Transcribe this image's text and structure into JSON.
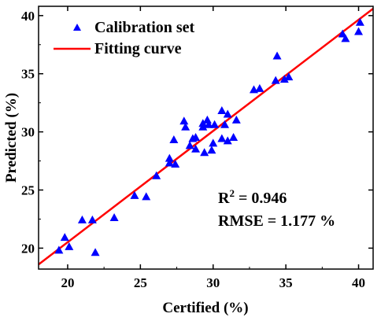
{
  "chart_data": {
    "type": "scatter",
    "xlabel": "Certified (%)",
    "ylabel": "Predicted (%)",
    "xlim": [
      18,
      41
    ],
    "ylim": [
      18.2,
      40.8
    ],
    "xticks": [
      20,
      25,
      30,
      35,
      40
    ],
    "yticks": [
      20,
      25,
      30,
      35,
      40
    ],
    "legend": {
      "placement": "top-left",
      "entries": [
        "Calibration set",
        "Fitting curve"
      ]
    },
    "series": [
      {
        "name": "Calibration set",
        "marker": "triangle",
        "color": "#0000ff",
        "points": [
          [
            19.4,
            19.8
          ],
          [
            19.8,
            20.9
          ],
          [
            20.1,
            20.1
          ],
          [
            21.0,
            22.4
          ],
          [
            21.7,
            22.4
          ],
          [
            21.9,
            19.6
          ],
          [
            23.2,
            22.6
          ],
          [
            24.6,
            24.5
          ],
          [
            25.4,
            24.4
          ],
          [
            26.1,
            26.2
          ],
          [
            27.0,
            27.3
          ],
          [
            27.0,
            27.7
          ],
          [
            27.3,
            29.3
          ],
          [
            27.4,
            27.2
          ],
          [
            28.0,
            30.9
          ],
          [
            28.1,
            30.4
          ],
          [
            28.4,
            28.8
          ],
          [
            28.6,
            29.4
          ],
          [
            28.8,
            29.5
          ],
          [
            28.8,
            28.5
          ],
          [
            29.3,
            30.7
          ],
          [
            29.3,
            30.4
          ],
          [
            29.4,
            28.2
          ],
          [
            29.6,
            31.0
          ],
          [
            29.7,
            30.6
          ],
          [
            29.9,
            28.4
          ],
          [
            30.0,
            29.0
          ],
          [
            30.1,
            30.6
          ],
          [
            30.6,
            29.4
          ],
          [
            30.6,
            31.8
          ],
          [
            30.8,
            30.6
          ],
          [
            31.0,
            31.5
          ],
          [
            31.0,
            29.2
          ],
          [
            31.4,
            29.5
          ],
          [
            31.6,
            31.0
          ],
          [
            32.8,
            33.6
          ],
          [
            33.2,
            33.7
          ],
          [
            34.3,
            34.4
          ],
          [
            34.4,
            36.5
          ],
          [
            34.9,
            34.5
          ],
          [
            35.2,
            34.7
          ],
          [
            38.9,
            38.4
          ],
          [
            39.1,
            38.0
          ],
          [
            40.0,
            38.6
          ],
          [
            40.1,
            39.4
          ]
        ]
      },
      {
        "name": "Fitting curve",
        "type": "line",
        "color": "#ff0000",
        "points": [
          [
            18,
            18.6
          ],
          [
            41,
            40.6
          ]
        ]
      }
    ],
    "annotations": [
      "R",
      "2",
      " = 0.946",
      "RMSE = 1.177 %"
    ]
  }
}
